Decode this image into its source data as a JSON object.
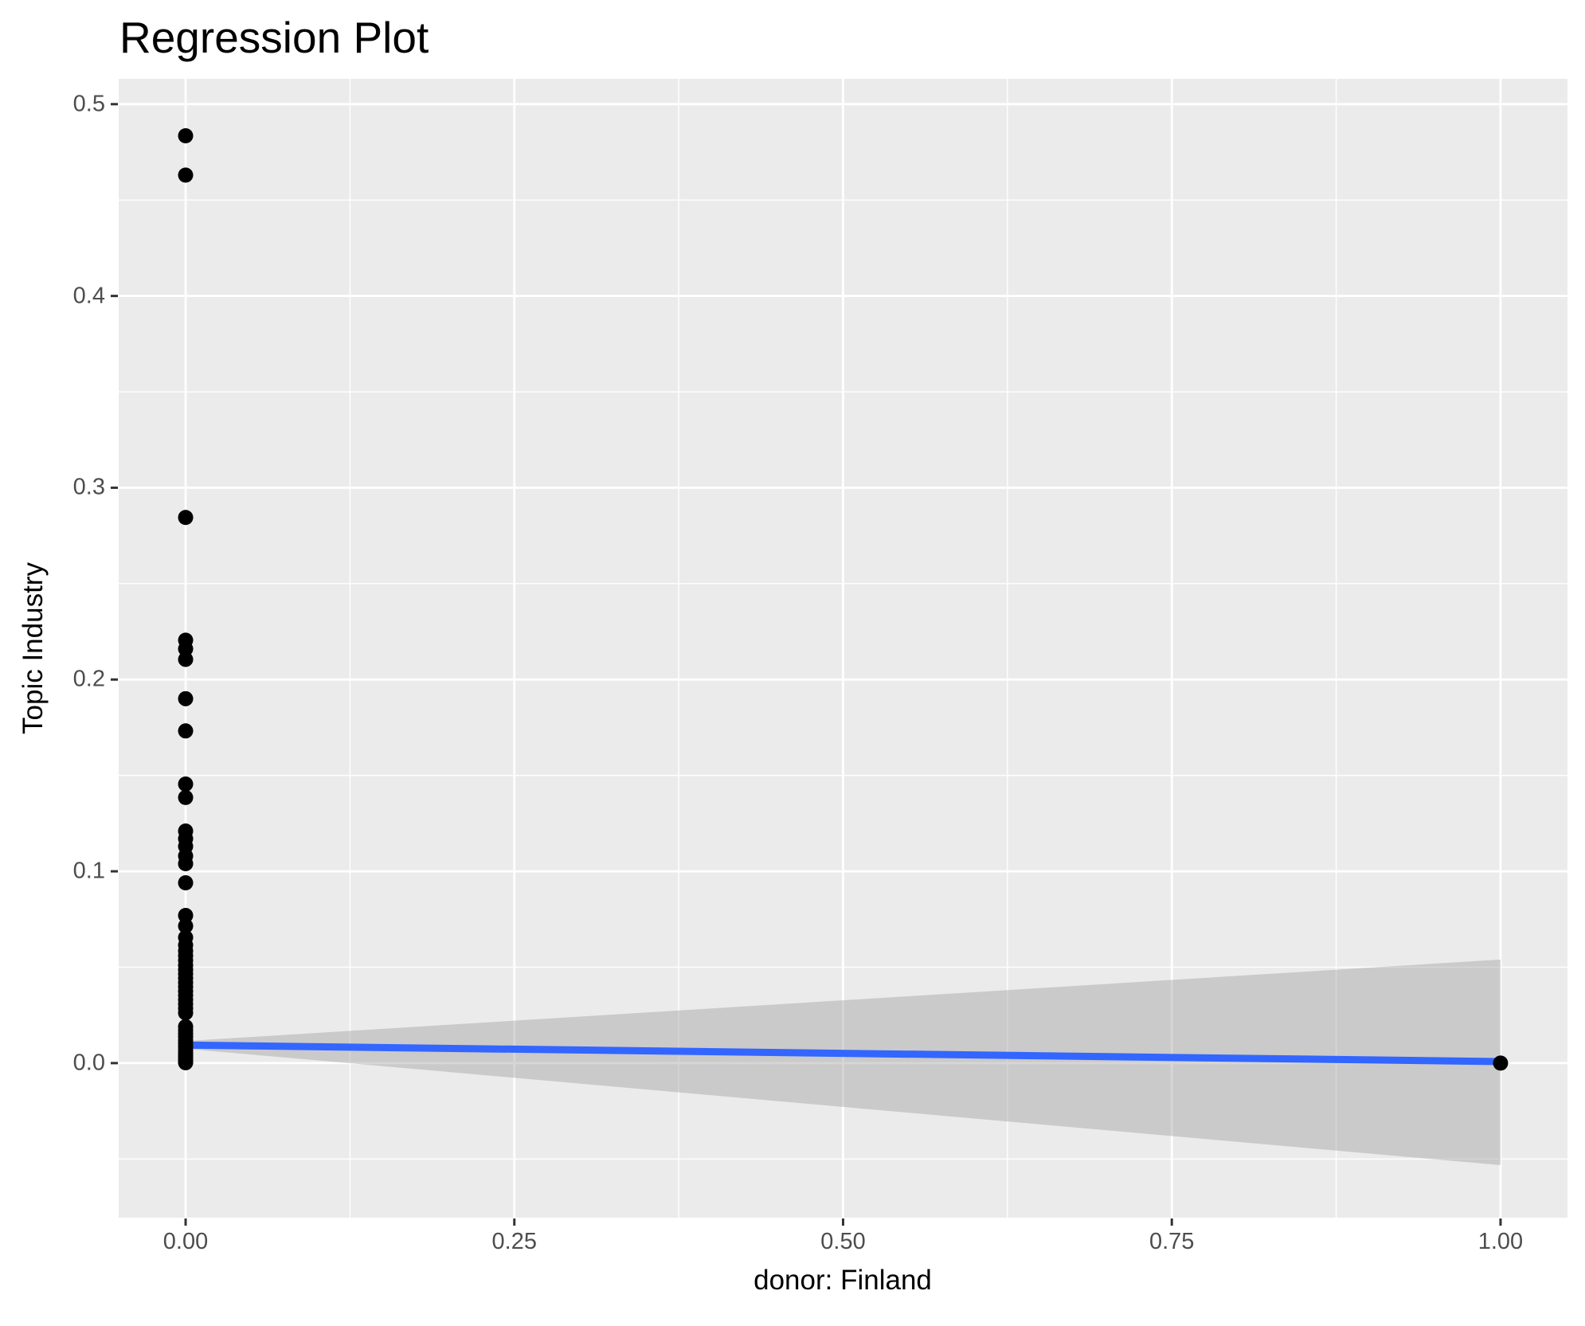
{
  "figure": {
    "title": "Regression Plot",
    "x_axis_title": "donor: Finland",
    "y_axis_title": "Topic Industry"
  },
  "chart_data": {
    "type": "scatter",
    "title": "Regression Plot",
    "xlabel": "donor: Finland",
    "ylabel": "Topic Industry",
    "xlim": [
      -0.0509,
      1.0509
    ],
    "ylim": [
      -0.0806,
      0.5132
    ],
    "grid": true,
    "legend": false,
    "x_ticks": {
      "values": [
        0,
        0.25,
        0.5,
        0.75,
        1
      ],
      "labels": [
        "0.00",
        "0.25",
        "0.50",
        "0.75",
        "1.00"
      ]
    },
    "y_ticks": {
      "values": [
        0,
        0.1,
        0.2,
        0.3,
        0.4,
        0.5
      ],
      "labels": [
        "0.0",
        "0.1",
        "0.2",
        "0.3",
        "0.4",
        "0.5"
      ]
    },
    "x_minor_ticks": [
      0.125,
      0.375,
      0.625,
      0.875
    ],
    "y_minor_ticks": [
      -0.05,
      0.05,
      0.15,
      0.25,
      0.35,
      0.45
    ],
    "series": [
      {
        "name": "confidence-band",
        "type": "area",
        "color": "rgba(153,153,153,0.4)",
        "x": [
          0,
          1
        ],
        "y_upper": [
          0.0115,
          0.054
        ],
        "y_lower": [
          0.0075,
          -0.0532
        ]
      },
      {
        "name": "linear-fit",
        "type": "line",
        "color": "#3366FF",
        "stroke_width": 9,
        "x": [
          0,
          1
        ],
        "y": [
          0.0094,
          0.0008
        ]
      },
      {
        "name": "observations",
        "type": "scatter",
        "color": "#000000",
        "point_radius": 9.5,
        "points": [
          [
            0,
            0.4835
          ],
          [
            0,
            0.463
          ],
          [
            0,
            0.2845
          ],
          [
            0,
            0.2205
          ],
          [
            0,
            0.216
          ],
          [
            0,
            0.2105
          ],
          [
            0,
            0.19
          ],
          [
            0,
            0.1732
          ],
          [
            0,
            0.1455
          ],
          [
            0,
            0.1385
          ],
          [
            0,
            0.121
          ],
          [
            0,
            0.117
          ],
          [
            0,
            0.113
          ],
          [
            0,
            0.108
          ],
          [
            0,
            0.104
          ],
          [
            0,
            0.094
          ],
          [
            0,
            0.077
          ],
          [
            0,
            0.0715
          ],
          [
            0,
            0.0655
          ],
          [
            0,
            0.0615
          ],
          [
            0,
            0.0585
          ],
          [
            0,
            0.056
          ],
          [
            0,
            0.0535
          ],
          [
            0,
            0.051
          ],
          [
            0,
            0.0487
          ],
          [
            0,
            0.0465
          ],
          [
            0,
            0.0443
          ],
          [
            0,
            0.042
          ],
          [
            0,
            0.0398
          ],
          [
            0,
            0.0375
          ],
          [
            0,
            0.0353
          ],
          [
            0,
            0.033
          ],
          [
            0,
            0.0308
          ],
          [
            0,
            0.0285
          ],
          [
            0,
            0.0262
          ],
          [
            0,
            0.019
          ],
          [
            0,
            0.0172
          ],
          [
            0,
            0.0155
          ],
          [
            0,
            0.0138
          ],
          [
            0,
            0.012
          ],
          [
            0,
            0.0103
          ],
          [
            0,
            0.0086
          ],
          [
            0,
            0.007
          ],
          [
            0,
            0.0056
          ],
          [
            0,
            0.0044
          ],
          [
            0,
            0.0033
          ],
          [
            0,
            0.0023
          ],
          [
            0,
            0.0014
          ],
          [
            0,
            0.0007
          ],
          [
            0,
            0.0002
          ],
          [
            1,
            0.0
          ]
        ]
      }
    ],
    "colors": {
      "panel_background": "#EBEBEB",
      "grid": "#FFFFFF",
      "tick_labels": "#4D4D4D",
      "tick_marks": "#333333",
      "titles": "#000000",
      "fit_line": "#3366FF",
      "band": "rgba(153,153,153,0.4)",
      "points": "#000000"
    }
  }
}
